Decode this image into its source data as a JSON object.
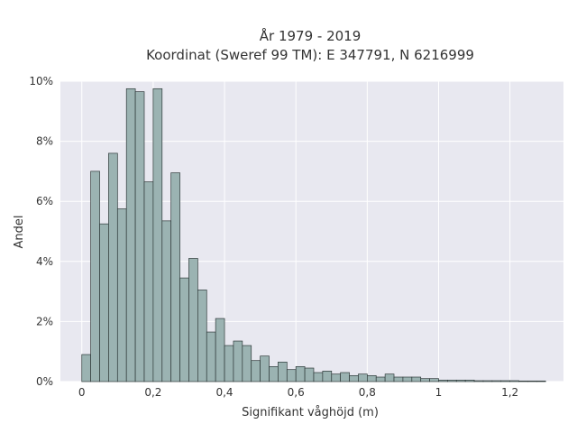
{
  "chart_data": {
    "type": "bar",
    "title": "År 1979 - 2019",
    "subtitle": "Koordinat (Sweref 99 TM): E 347791, N 6216999",
    "xlabel": "Signifikant våghöjd (m)",
    "ylabel": "Andel",
    "bin_width": 0.025,
    "bin_start": 0.0,
    "xlim": [
      -0.06,
      1.35
    ],
    "ylim": [
      0,
      10
    ],
    "y_unit": "%",
    "xticks": [
      {
        "value": 0,
        "label": "0"
      },
      {
        "value": 0.2,
        "label": "0,2"
      },
      {
        "value": 0.4,
        "label": "0,4"
      },
      {
        "value": 0.6,
        "label": "0,6"
      },
      {
        "value": 0.8,
        "label": "0,8"
      },
      {
        "value": 1.0,
        "label": "1"
      },
      {
        "value": 1.2,
        "label": "1,2"
      }
    ],
    "yticks": [
      {
        "value": 0,
        "label": "0%"
      },
      {
        "value": 2,
        "label": "2%"
      },
      {
        "value": 4,
        "label": "4%"
      },
      {
        "value": 6,
        "label": "6%"
      },
      {
        "value": 8,
        "label": "8%"
      },
      {
        "value": 10,
        "label": "10%"
      }
    ],
    "grid": true,
    "bar_color": "#9bb3b2",
    "bar_edge_color": "#2f3a3a",
    "plot_background": "#e8e8f0",
    "values": [
      0.9,
      7.0,
      5.25,
      7.6,
      5.75,
      9.75,
      9.65,
      6.65,
      9.75,
      5.35,
      6.95,
      3.45,
      4.1,
      3.05,
      1.65,
      2.1,
      1.2,
      1.35,
      1.2,
      0.7,
      0.85,
      0.5,
      0.65,
      0.4,
      0.5,
      0.45,
      0.3,
      0.35,
      0.25,
      0.3,
      0.2,
      0.25,
      0.2,
      0.15,
      0.25,
      0.15,
      0.15,
      0.15,
      0.1,
      0.1,
      0.05,
      0.05,
      0.05,
      0.05,
      0.03,
      0.03,
      0.03,
      0.03,
      0.03,
      0.02,
      0.02,
      0.02
    ]
  }
}
